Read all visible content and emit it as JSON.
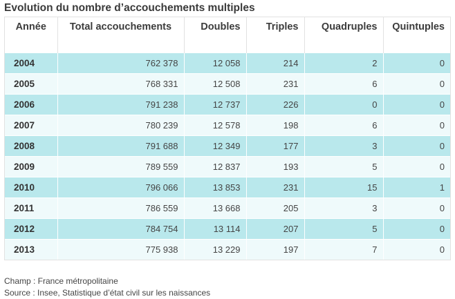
{
  "title": "Evolution du nombre d’accouchements multiples",
  "chart_data": {
    "type": "table",
    "columns": [
      "Année",
      "Total accouchements",
      "Doubles",
      "Triples",
      "Quadruples",
      "Quintuples"
    ],
    "rows": [
      [
        "2004",
        "762 378",
        "12 058",
        "214",
        "2",
        "0"
      ],
      [
        "2005",
        "768 331",
        "12 508",
        "231",
        "6",
        "0"
      ],
      [
        "2006",
        "791 238",
        "12 737",
        "226",
        "0",
        "0"
      ],
      [
        "2007",
        "780 239",
        "12 578",
        "198",
        "6",
        "0"
      ],
      [
        "2008",
        "791 688",
        "12 349",
        "177",
        "3",
        "0"
      ],
      [
        "2009",
        "789 559",
        "12 837",
        "193",
        "5",
        "0"
      ],
      [
        "2010",
        "796 066",
        "13 853",
        "231",
        "15",
        "1"
      ],
      [
        "2011",
        "786 559",
        "13 668",
        "205",
        "3",
        "0"
      ],
      [
        "2012",
        "784 754",
        "13 114",
        "207",
        "5",
        "0"
      ],
      [
        "2013",
        "775 938",
        "13 229",
        "197",
        "7",
        "0"
      ]
    ]
  },
  "footer": {
    "champ": "Champ : France métropolitaine",
    "source": "Source : Insee, Statistique d’état civil sur les naissances"
  },
  "colors": {
    "row_odd": "#b9e8ec",
    "row_even": "#effafb"
  }
}
